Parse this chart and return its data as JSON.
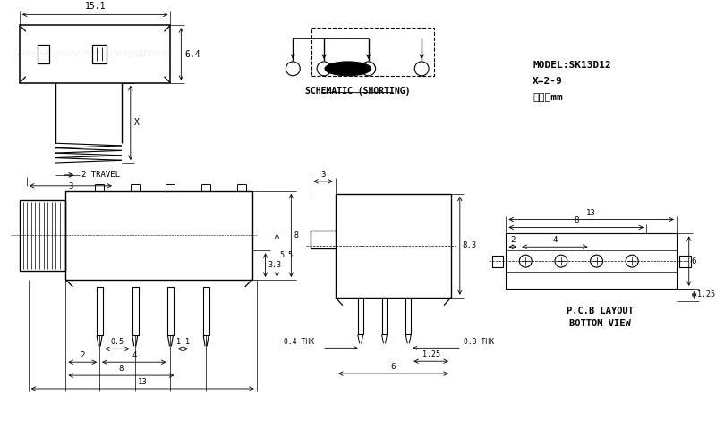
{
  "bg_color": "#ffffff",
  "lc": "#000000",
  "texts": {
    "model": "MODEL:SK13D12",
    "x_range": "X=2-9",
    "unit": "单位：mm",
    "schematic": "SCHEMATIC (SHORTING)",
    "pcb": "P.C.B LAYOUT\nBOTTOM VIEW"
  }
}
